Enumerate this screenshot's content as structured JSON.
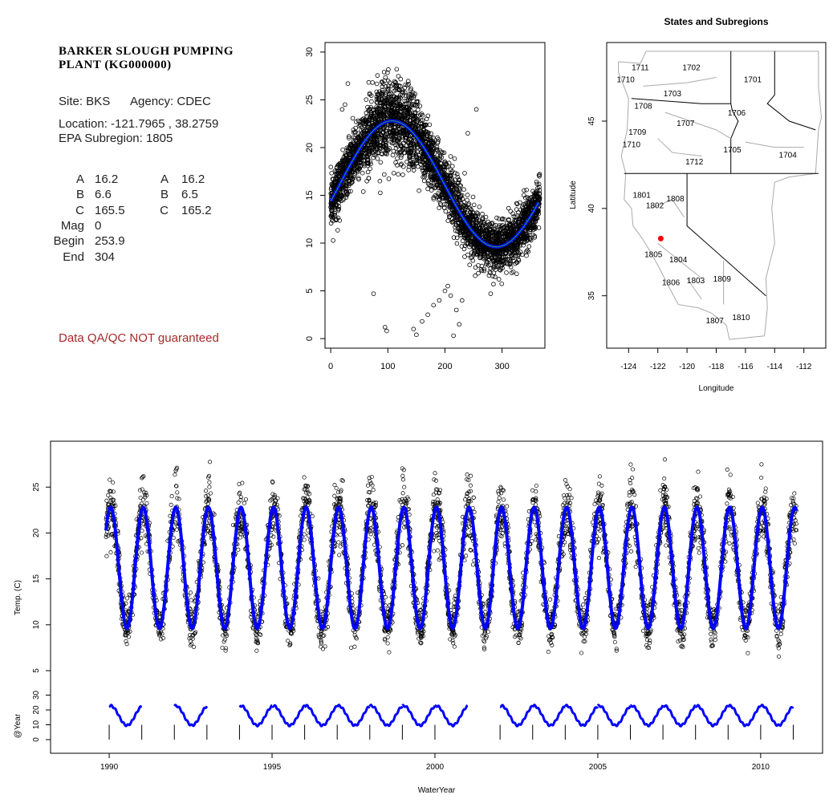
{
  "station": {
    "title_line1": "BARKER SLOUGH PUMPING",
    "title_line2": "PLANT (KG000000)",
    "site_label": "Site: BKS",
    "agency_label": "Agency: CDEC",
    "location_label": "Location: -121.7965 , 38.2759",
    "subregion_label": "EPA Subregion: 1805"
  },
  "parameters": {
    "left": [
      {
        "label": "A",
        "value": "16.2"
      },
      {
        "label": "B",
        "value": "6.6"
      },
      {
        "label": "C",
        "value": "165.5"
      },
      {
        "label": "Mag",
        "value": "0"
      },
      {
        "label": "Begin",
        "value": "253.9"
      },
      {
        "label": "End",
        "value": "304"
      }
    ],
    "right": [
      {
        "label": "A",
        "value": "16.2"
      },
      {
        "label": "B",
        "value": "6.5"
      },
      {
        "label": "C",
        "value": "165.2"
      }
    ]
  },
  "qa_note": "Data QA/QC NOT guaranteed",
  "colors": {
    "fit": "#0000ff",
    "fit_inner": "#22aa22",
    "point": "#000000",
    "state_border": "#000000",
    "subregion_border": "#aaaaaa",
    "site": "#ff0000",
    "qa_note": "#a52a2a"
  },
  "chart_data": [
    {
      "type": "scatter",
      "name": "day-of-year scatter",
      "title": "",
      "xlabel": "",
      "ylabel": "",
      "xlim": [
        -10,
        375
      ],
      "ylim": [
        -1,
        31
      ],
      "xticks": [
        0,
        100,
        200,
        300
      ],
      "yticks": [
        0,
        5,
        10,
        15,
        20,
        25,
        30
      ],
      "fit": {
        "A": 16.2,
        "B": 6.6,
        "C": 165.5,
        "period": 365
      },
      "outliers": [
        {
          "x": 20,
          "y": 24
        },
        {
          "x": 25,
          "y": 24.5
        },
        {
          "x": 30,
          "y": 26.7
        },
        {
          "x": 143,
          "y": 25.5
        },
        {
          "x": 168,
          "y": 23
        },
        {
          "x": 98,
          "y": 0.8
        },
        {
          "x": 95,
          "y": 1.2
        },
        {
          "x": 75,
          "y": 4.7
        },
        {
          "x": 145,
          "y": 1
        },
        {
          "x": 150,
          "y": 0.4
        },
        {
          "x": 160,
          "y": 1.8
        },
        {
          "x": 170,
          "y": 2.5
        },
        {
          "x": 180,
          "y": 3.5
        },
        {
          "x": 190,
          "y": 4
        },
        {
          "x": 200,
          "y": 5
        },
        {
          "x": 205,
          "y": 5.5
        },
        {
          "x": 210,
          "y": 4.5
        },
        {
          "x": 220,
          "y": 3
        },
        {
          "x": 225,
          "y": 1.5
        },
        {
          "x": 215,
          "y": 0.3
        },
        {
          "x": 230,
          "y": 4
        },
        {
          "x": 280,
          "y": 4.7
        },
        {
          "x": 285,
          "y": 5.7
        },
        {
          "x": 240,
          "y": 21.5
        },
        {
          "x": 255,
          "y": 24
        }
      ]
    },
    {
      "type": "map",
      "title": "States and Subregions",
      "xlabel": "Longitude",
      "ylabel": "Latitude",
      "xlim": [
        -125.5,
        -110.5
      ],
      "ylim": [
        32,
        49.5
      ],
      "xticks": [
        -124,
        -122,
        -120,
        -118,
        -116,
        -114,
        -112
      ],
      "yticks": [
        35,
        40,
        45
      ],
      "site": {
        "lon": -121.7965,
        "lat": 38.2759
      },
      "subregions": [
        {
          "label": "1702",
          "lon": -119.7,
          "lat": 48.1
        },
        {
          "label": "1701",
          "lon": -115.5,
          "lat": 47.4
        },
        {
          "label": "1711",
          "lon": -123.2,
          "lat": 48.1
        },
        {
          "label": "1710",
          "lon": -124.2,
          "lat": 47.4
        },
        {
          "label": "1703",
          "lon": -121,
          "lat": 46.6
        },
        {
          "label": "1708",
          "lon": -123,
          "lat": 45.9
        },
        {
          "label": "1706",
          "lon": -116.6,
          "lat": 45.5
        },
        {
          "label": "1707",
          "lon": -120.1,
          "lat": 44.9
        },
        {
          "label": "1709",
          "lon": -123.4,
          "lat": 44.4
        },
        {
          "label": "1710",
          "lon": -123.8,
          "lat": 43.7
        },
        {
          "label": "1705",
          "lon": -116.9,
          "lat": 43.4
        },
        {
          "label": "1704",
          "lon": -113.1,
          "lat": 43.1
        },
        {
          "label": "1712",
          "lon": -119.5,
          "lat": 42.7
        },
        {
          "label": "1801",
          "lon": -123.1,
          "lat": 40.8
        },
        {
          "label": "1808",
          "lon": -120.8,
          "lat": 40.6
        },
        {
          "label": "1802",
          "lon": -122.2,
          "lat": 40.2
        },
        {
          "label": "1805",
          "lon": -122.3,
          "lat": 37.4
        },
        {
          "label": "1804",
          "lon": -120.6,
          "lat": 37.1
        },
        {
          "label": "1806",
          "lon": -121.1,
          "lat": 35.8
        },
        {
          "label": "1803",
          "lon": -119.4,
          "lat": 35.9
        },
        {
          "label": "1809",
          "lon": -117.6,
          "lat": 36
        },
        {
          "label": "1807",
          "lon": -118.1,
          "lat": 33.6
        },
        {
          "label": "1810",
          "lon": -116.3,
          "lat": 33.8
        }
      ]
    },
    {
      "type": "line",
      "name": "time series",
      "title": "",
      "xlabel": "WaterYear",
      "ylabel": "Temp. (C)",
      "ylabel2": "@Year",
      "xlim": [
        1988.2,
        2011.9
      ],
      "ylim": [
        -4,
        30
      ],
      "xticks": [
        1990,
        1995,
        2000,
        2005,
        2010
      ],
      "yticks": [
        5,
        10,
        15,
        20,
        25
      ],
      "yticks2": [
        0,
        10,
        20,
        30
      ],
      "start_year": 1989.9,
      "end_year": 2011.1,
      "fit": {
        "A": 16.2,
        "B": 6.6,
        "C": 165.5
      },
      "gap_years": [
        1991,
        1993,
        2001
      ],
      "year_ticks": [
        1990,
        1991,
        1992,
        1993,
        1994,
        1995,
        1996,
        1997,
        1998,
        1999,
        2000,
        2001,
        2002,
        2003,
        2004,
        2005,
        2006,
        2007,
        2008,
        2009,
        2010,
        2011
      ]
    }
  ]
}
